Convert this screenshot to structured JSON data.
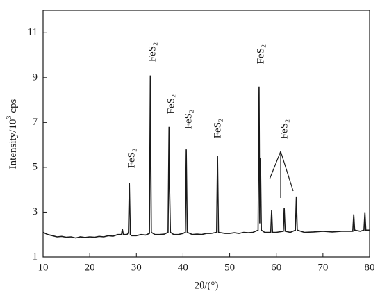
{
  "chart_data": {
    "type": "line",
    "xlabel": "2θ/(°)",
    "ylabel_parts": [
      "Intensity/10",
      "3",
      "cps"
    ],
    "annotations": [
      "FeS₂",
      "FeS₂",
      "FeS₂",
      "FeS₂",
      "FeS₂",
      "FeS₂",
      "FeS₂"
    ],
    "color": "#1a1a1a",
    "xlim": [
      10,
      80
    ],
    "xticks": [
      10,
      20,
      30,
      40,
      50,
      60,
      70,
      80
    ],
    "ylim": [
      1,
      12
    ],
    "yticks": [
      1,
      3,
      5,
      7,
      9,
      11
    ],
    "x": [
      10,
      11,
      12,
      13,
      14,
      15,
      16,
      17,
      18,
      19,
      20,
      21,
      22,
      23,
      24,
      25,
      26,
      26.8,
      27.0,
      27.2,
      28,
      28.3,
      28.5,
      28.7,
      29,
      30,
      31,
      32,
      32.8,
      33.0,
      33.2,
      34,
      35,
      36,
      36.8,
      37.0,
      37.1,
      37.3,
      38,
      39,
      40,
      40.5,
      40.7,
      40.9,
      42,
      43,
      44,
      45,
      46,
      47.2,
      47.4,
      47.6,
      49,
      50,
      51,
      52,
      53,
      54,
      55,
      56.1,
      56.3,
      56.45,
      56.6,
      56.8,
      57.5,
      58.8,
      59.0,
      59.2,
      60,
      61.5,
      61.7,
      61.9,
      63,
      64.1,
      64.3,
      64.5,
      66,
      68,
      70,
      72,
      74,
      76.4,
      76.6,
      76.8,
      78,
      78.8,
      79.0,
      79.2,
      80
    ],
    "values": [
      2.1,
      2.0,
      1.95,
      1.9,
      1.92,
      1.88,
      1.9,
      1.85,
      1.9,
      1.87,
      1.9,
      1.88,
      1.92,
      1.9,
      1.95,
      1.93,
      2.0,
      2.0,
      2.25,
      2.0,
      2.0,
      2.1,
      4.3,
      2.0,
      1.95,
      1.95,
      2.0,
      1.98,
      2.05,
      9.1,
      2.1,
      2.0,
      2.0,
      2.02,
      2.1,
      6.8,
      4.2,
      2.1,
      2.0,
      2.0,
      2.05,
      2.1,
      5.8,
      2.1,
      2.0,
      2.02,
      2.0,
      2.05,
      2.05,
      2.1,
      5.5,
      2.1,
      2.05,
      2.05,
      2.08,
      2.05,
      2.1,
      2.08,
      2.1,
      2.2,
      8.6,
      2.5,
      5.4,
      2.2,
      2.1,
      2.1,
      3.1,
      2.1,
      2.1,
      2.15,
      3.2,
      2.15,
      2.1,
      2.2,
      3.7,
      2.2,
      2.1,
      2.12,
      2.15,
      2.12,
      2.15,
      2.15,
      2.9,
      2.2,
      2.15,
      2.2,
      3.0,
      2.2,
      2.2
    ]
  }
}
